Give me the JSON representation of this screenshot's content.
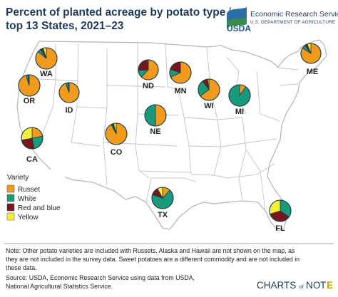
{
  "header": {
    "title_line1": "Percent of planted acreage by potato type in",
    "title_line2": "top 13 States, 2021–23"
  },
  "logo": {
    "mark": "USDA",
    "agency": "Economic Research Service",
    "department": "U.S. DEPARTMENT OF AGRICULTURE"
  },
  "colors": {
    "Russet": "#f29a1b",
    "White": "#1a9a7c",
    "Red and blue": "#7a1520",
    "Yellow": "#f4ef3a",
    "map_fill": "#ffffff",
    "map_stroke": "#b8b8b8",
    "pie_stroke": "#1e3c46"
  },
  "chart_data": {
    "type": "pie",
    "legend_title": "Variety",
    "legend_placement": "bottom-left",
    "categories": [
      "Russet",
      "White",
      "Red and blue",
      "Yellow"
    ],
    "states": [
      {
        "state": "WA",
        "values": [
          86,
          5,
          4,
          5
        ]
      },
      {
        "state": "OR",
        "values": [
          95,
          3,
          1,
          1
        ]
      },
      {
        "state": "ID",
        "values": [
          94,
          4,
          1,
          1
        ]
      },
      {
        "state": "CA",
        "values": [
          22,
          25,
          25,
          28
        ]
      },
      {
        "state": "ND",
        "values": [
          62,
          12,
          26,
          0
        ]
      },
      {
        "state": "NE",
        "values": [
          50,
          50,
          0,
          0
        ]
      },
      {
        "state": "CO",
        "values": [
          92,
          2,
          2,
          4
        ]
      },
      {
        "state": "MN",
        "values": [
          68,
          12,
          20,
          0
        ]
      },
      {
        "state": "WI",
        "values": [
          65,
          25,
          8,
          2
        ]
      },
      {
        "state": "MI",
        "values": [
          10,
          90,
          0,
          0
        ]
      },
      {
        "state": "ME",
        "values": [
          84,
          6,
          4,
          6
        ]
      },
      {
        "state": "TX",
        "values": [
          12,
          68,
          12,
          8
        ]
      },
      {
        "state": "FL",
        "values": [
          0,
          35,
          35,
          30
        ]
      }
    ]
  },
  "footer": {
    "note_lines": [
      "Note: Other potato varieties are included with Russets. Alaska and Hawaii are not shown on the map, as",
      "they are not included in the survey data. Sweet potatoes are a different commodity and are not included in",
      "these data."
    ],
    "source_lines": [
      "Source: USDA, Economic Research Service using data from USDA,",
      "National Agricultural Statistics Service."
    ],
    "brand_left": "CHARTS",
    "brand_of": "of",
    "brand_n": "N",
    "brand_o": "O",
    "brand_t": "T",
    "brand_e": "E"
  }
}
